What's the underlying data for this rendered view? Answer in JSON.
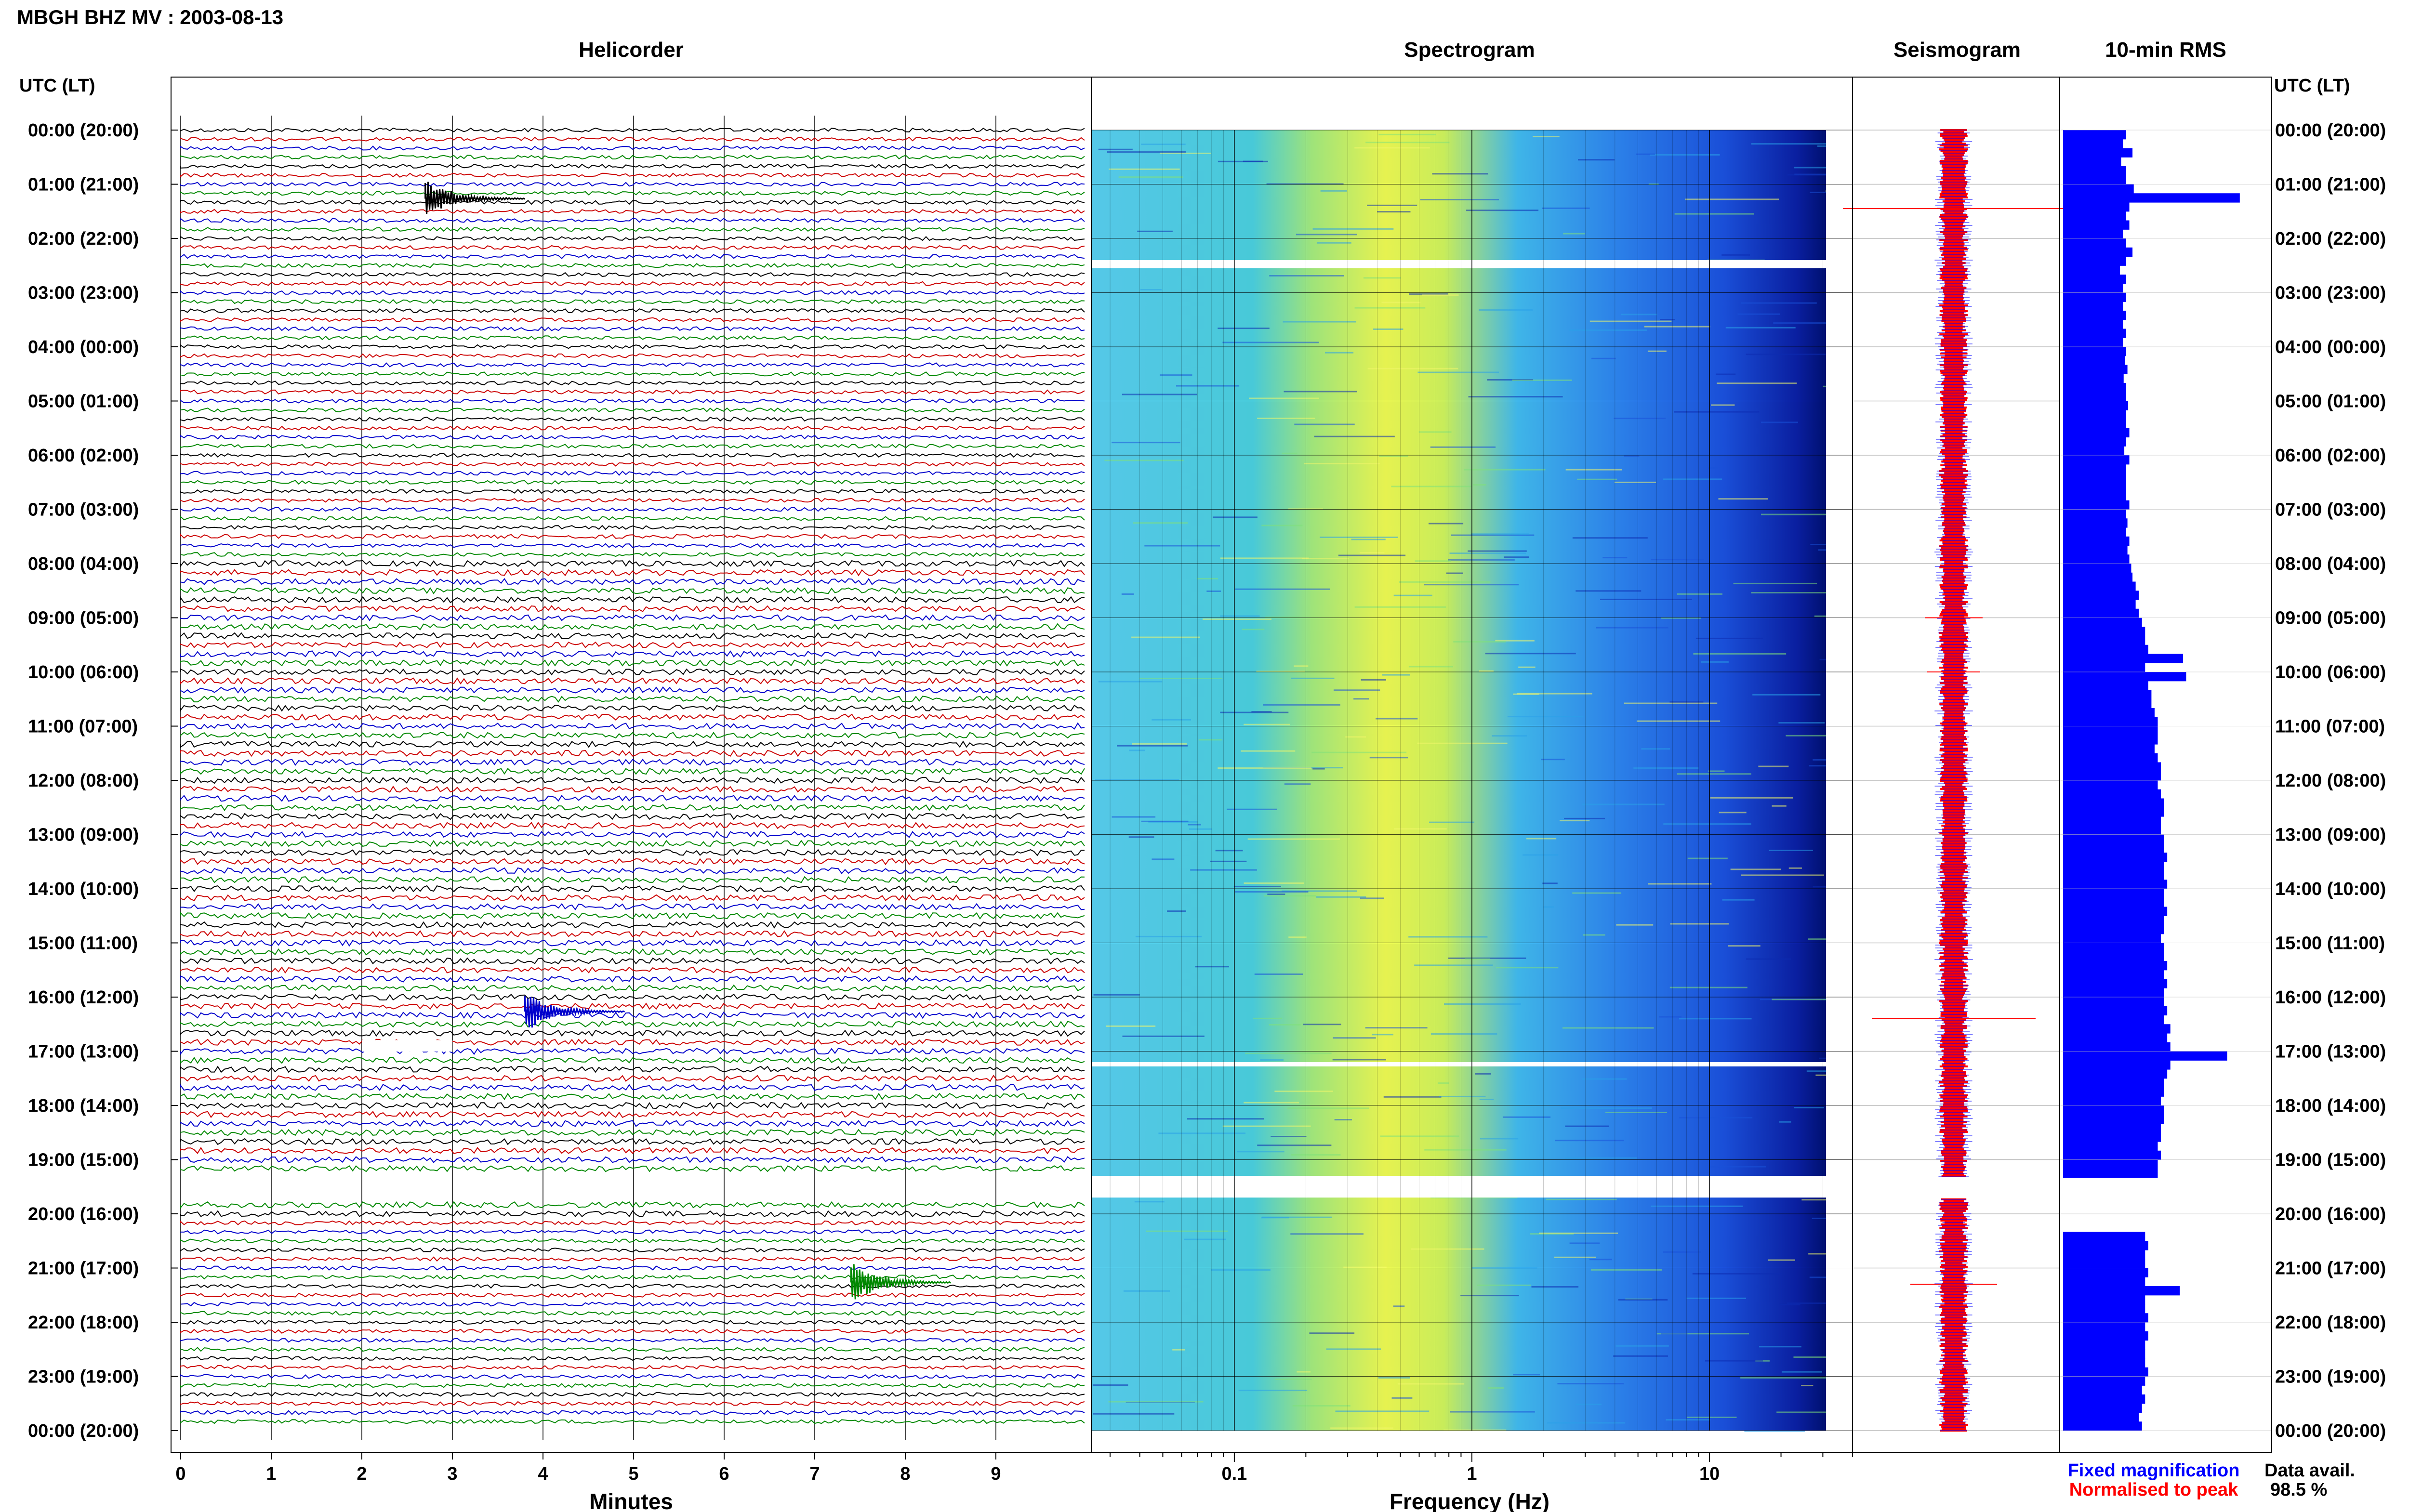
{
  "page_title": "MBGH BHZ MV : 2003-08-13",
  "time_axis_header": "UTC (LT)",
  "time_labels": [
    "00:00 (20:00)",
    "01:00 (21:00)",
    "02:00 (22:00)",
    "03:00 (23:00)",
    "04:00 (00:00)",
    "05:00 (01:00)",
    "06:00 (02:00)",
    "07:00 (03:00)",
    "08:00 (04:00)",
    "09:00 (05:00)",
    "10:00 (06:00)",
    "11:00 (07:00)",
    "12:00 (08:00)",
    "13:00 (09:00)",
    "14:00 (10:00)",
    "15:00 (11:00)",
    "16:00 (12:00)",
    "17:00 (13:00)",
    "18:00 (14:00)",
    "19:00 (15:00)",
    "20:00 (16:00)",
    "21:00 (17:00)",
    "22:00 (18:00)",
    "23:00 (19:00)",
    "00:00 (20:00)"
  ],
  "colors": {
    "trace": [
      "#000000",
      "#cc0000",
      "#0000cc",
      "#008800"
    ],
    "fixed": "#0000ff",
    "normalised": "#ff0000",
    "rms": "#0000ff"
  },
  "chart_data": [
    {
      "type": "line",
      "panel": "helicorder",
      "title": "Helicorder",
      "xlabel": "Minutes",
      "x_ticks": [
        0,
        1,
        2,
        3,
        4,
        5,
        6,
        7,
        8,
        9
      ],
      "xlim": [
        0,
        10
      ],
      "traces_per_hour": 6,
      "hours": 24,
      "events": [
        {
          "hour": 1,
          "minute": 2.7,
          "color": "black"
        },
        {
          "hour": 16,
          "minute": 3.8,
          "color": "blue"
        },
        {
          "hour": 21,
          "minute": 7.4,
          "color": "green"
        }
      ],
      "gaps": [
        {
          "hour": 16.9,
          "from_minute": 2.0,
          "to_minute": 3.0
        }
      ]
    },
    {
      "type": "heatmap",
      "panel": "spectrogram",
      "title": "Spectrogram",
      "xlabel": "Frequency (Hz)",
      "x_scale": "log",
      "xlim": [
        0.025,
        40
      ],
      "x_tick_labels": [
        "0.1",
        "1",
        "10"
      ],
      "x_ticks": [
        0.1,
        1,
        10
      ],
      "data_gaps_hours": [
        [
          2.4,
          2.55
        ],
        [
          17.2,
          17.28
        ],
        [
          19.3,
          19.7
        ]
      ]
    },
    {
      "type": "line",
      "panel": "seismogram",
      "title": "Seismogram",
      "legend": [
        "Fixed magnification",
        "Normalised to peak"
      ]
    },
    {
      "type": "bar",
      "panel": "rms",
      "title": "10-min RMS",
      "orientation": "horizontal",
      "values": [
        1.0,
        0.95,
        1.1,
        0.92,
        1.0,
        1.0,
        1.12,
        2.8,
        1.05,
        1.0,
        1.05,
        0.95,
        1.0,
        1.1,
        1.0,
        0.9,
        1.0,
        0.95,
        1.0,
        0.95,
        1.0,
        0.95,
        1.0,
        0.95,
        1.0,
        0.98,
        1.02,
        0.96,
        1.0,
        1.0,
        1.03,
        1.0,
        1.0,
        1.05,
        1.0,
        0.97,
        1.05,
        1.0,
        1.0,
        1.0,
        1.0,
        1.05,
        1.0,
        1.02,
        1.0,
        1.05,
        1.02,
        1.05,
        1.08,
        1.1,
        1.15,
        1.2,
        1.15,
        1.2,
        1.25,
        1.3,
        1.3,
        1.35,
        1.9,
        1.3,
        1.95,
        1.35,
        1.4,
        1.4,
        1.45,
        1.5,
        1.5,
        1.5,
        1.45,
        1.5,
        1.55,
        1.55,
        1.5,
        1.55,
        1.6,
        1.6,
        1.55,
        1.55,
        1.6,
        1.6,
        1.65,
        1.6,
        1.6,
        1.65,
        1.6,
        1.6,
        1.65,
        1.6,
        1.6,
        1.55,
        1.6,
        1.6,
        1.65,
        1.6,
        1.65,
        1.6,
        1.6,
        1.65,
        1.6,
        1.7,
        1.65,
        1.7,
        2.6,
        1.7,
        1.65,
        1.6,
        1.6,
        1.55,
        1.6,
        1.6,
        1.55,
        1.55,
        1.5,
        1.55,
        1.5,
        1.5,
        0,
        0,
        0,
        0,
        0,
        0,
        1.3,
        1.35,
        1.3,
        1.3,
        1.35,
        1.3,
        1.85,
        1.3,
        1.3,
        1.35,
        1.3,
        1.35,
        1.3,
        1.3,
        1.3,
        1.35,
        1.3,
        1.25,
        1.3,
        1.25,
        1.2,
        1.25
      ],
      "gap_rows": [
        116,
        121
      ]
    }
  ],
  "legend": {
    "fixed_label": "Fixed magnification",
    "normalised_label": "Normalised to peak"
  },
  "availability": {
    "label": "Data avail.",
    "value": "98.5 %"
  }
}
